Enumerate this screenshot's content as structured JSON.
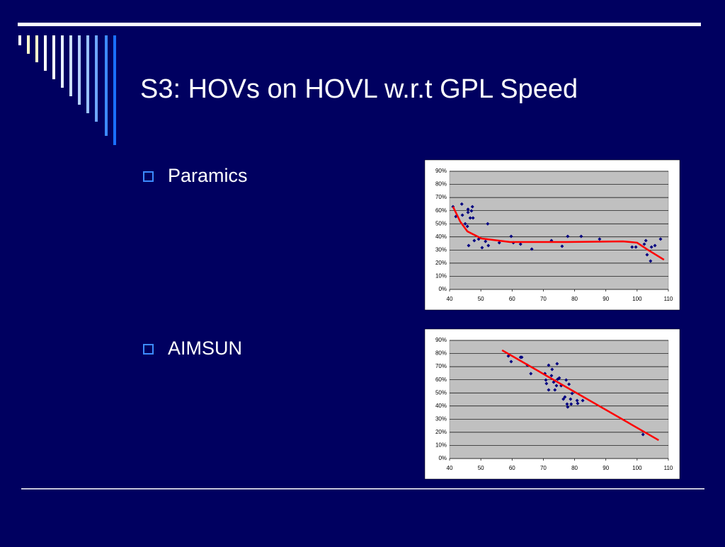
{
  "title": "S3: HOVs on HOVL w.r.t GPL Speed",
  "bullets": [
    "Paramics",
    "AIMSUN"
  ],
  "chart_data": [
    {
      "type": "scatter",
      "series": [
        {
          "type": "scatter",
          "color": "#000080",
          "x": [
            41.1,
            42.0,
            43.9,
            44.1,
            45.0,
            45.7,
            45.9,
            45.9,
            46.1,
            46.6,
            47.0,
            47.3,
            47.5,
            47.9,
            49.3,
            50.4,
            51.5,
            52.2,
            52.4,
            55.9,
            59.7,
            60.4,
            62.7,
            66.3,
            72.6,
            76.0,
            77.8,
            82.1,
            88.0,
            98.4,
            99.6,
            102.3,
            102.8,
            103.2,
            104.3,
            104.6,
            105.7,
            107.5
          ],
          "values": [
            63,
            55.5,
            65,
            56.6,
            50,
            48,
            61,
            58.7,
            33.4,
            54.4,
            59.8,
            63,
            54.4,
            37.2,
            38.3,
            31.8,
            36.6,
            50,
            33.4,
            35.6,
            40.4,
            35.6,
            34.5,
            30.7,
            37.2,
            32.9,
            40.4,
            40.4,
            38.3,
            32.3,
            32.3,
            34.5,
            37.2,
            26.4,
            21.6,
            32.3,
            33.4,
            38.3
          ]
        },
        {
          "type": "line",
          "color": "#ff0000",
          "x": [
            41.1,
            43.4,
            45.7,
            50.2,
            59.3,
            77.4,
            95.5,
            100.0,
            103.4,
            108.6
          ],
          "values": [
            63,
            51.7,
            44.2,
            38.8,
            36.1,
            36.1,
            36.6,
            35.6,
            30.2,
            22.6
          ]
        }
      ],
      "xlim": [
        40,
        110
      ],
      "xticks": [
        40,
        50,
        60,
        70,
        80,
        90,
        100,
        110
      ],
      "ylim": [
        0,
        90
      ],
      "yticks": [
        {
          "value": 0,
          "label": "0%"
        },
        {
          "value": 10,
          "label": "10%"
        },
        {
          "value": 20,
          "label": "20%"
        },
        {
          "value": 30,
          "label": "30%"
        },
        {
          "value": 40,
          "label": "40%"
        },
        {
          "value": 50,
          "label": "50%"
        },
        {
          "value": 60,
          "label": "60%"
        },
        {
          "value": 70,
          "label": "70%"
        },
        {
          "value": 80,
          "label": "80%"
        },
        {
          "value": 90,
          "label": "90%"
        }
      ],
      "grid": true
    },
    {
      "type": "scatter",
      "series": [
        {
          "type": "scatter",
          "color": "#000080",
          "x": [
            58.8,
            59.7,
            62.7,
            63.1,
            64.9,
            66.0,
            70.5,
            70.8,
            71.0,
            71.7,
            71.7,
            72.6,
            72.8,
            73.3,
            73.7,
            74.2,
            74.4,
            74.6,
            75.1,
            75.7,
            76.4,
            76.9,
            77.3,
            77.6,
            77.8,
            78.2,
            78.7,
            78.9,
            79.2,
            80.8,
            81.0,
            82.6,
            101.9
          ],
          "values": [
            78.1,
            73.8,
            77.1,
            77.1,
            71.1,
            64.7,
            64.7,
            59.8,
            57.1,
            71.1,
            52.3,
            63.1,
            67.9,
            58.2,
            52.3,
            55.5,
            72.2,
            60.4,
            61.4,
            55.5,
            45.3,
            46.9,
            59.8,
            41.5,
            39.3,
            56.6,
            45.3,
            41.5,
            49.6,
            44.2,
            42.0,
            44.2,
            18.3
          ]
        },
        {
          "type": "line",
          "color": "#ff0000",
          "x": [
            56.8,
            106.9
          ],
          "values": [
            82.5,
            14.0
          ]
        }
      ],
      "xlim": [
        40,
        110
      ],
      "xticks": [
        40,
        50,
        60,
        70,
        80,
        90,
        100,
        110
      ],
      "ylim": [
        0,
        90
      ],
      "yticks": [
        {
          "value": 0,
          "label": "0%"
        },
        {
          "value": 10,
          "label": "10%"
        },
        {
          "value": 20,
          "label": "20%"
        },
        {
          "value": 30,
          "label": "30%"
        },
        {
          "value": 40,
          "label": "40%"
        },
        {
          "value": 50,
          "label": "50%"
        },
        {
          "value": 60,
          "label": "60%"
        },
        {
          "value": 70,
          "label": "70%"
        },
        {
          "value": 80,
          "label": "80%"
        },
        {
          "value": 90,
          "label": "90%"
        }
      ],
      "grid": true
    }
  ]
}
